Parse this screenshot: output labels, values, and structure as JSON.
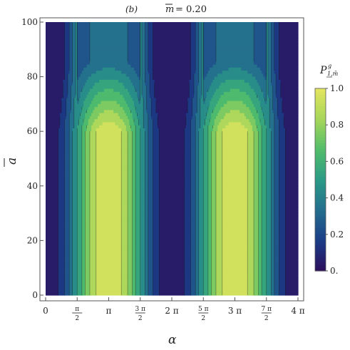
{
  "chart_data": {
    "type": "heatmap",
    "panel_label": "(b)",
    "title": "m̄ = 0.20",
    "title_var": "m",
    "title_value": "= 0.20",
    "xlabel": "α",
    "ylabel": "a",
    "legend_title": "P",
    "legend_title_sub": "1,m̄",
    "legend_title_sup": "g",
    "xlim": [
      0,
      12.566
    ],
    "ylim": [
      0,
      100
    ],
    "x_ticks": [
      {
        "value": 0,
        "label": "0",
        "numerator": "",
        "denominator": ""
      },
      {
        "value": 1.5708,
        "label": "",
        "numerator": "π",
        "denominator": "2"
      },
      {
        "value": 3.1416,
        "label": "π",
        "numerator": "",
        "denominator": ""
      },
      {
        "value": 4.7124,
        "label": "",
        "numerator": "3 π",
        "denominator": "2"
      },
      {
        "value": 6.2832,
        "label": "2 π",
        "numerator": "",
        "denominator": ""
      },
      {
        "value": 7.854,
        "label": "",
        "numerator": "5 π",
        "denominator": "2"
      },
      {
        "value": 9.4248,
        "label": "3 π",
        "numerator": "",
        "denominator": ""
      },
      {
        "value": 10.9956,
        "label": "",
        "numerator": "7 π",
        "denominator": "2"
      },
      {
        "value": 12.566,
        "label": "4 π",
        "numerator": "",
        "denominator": ""
      }
    ],
    "y_ticks": [
      {
        "value": 0,
        "label": "0"
      },
      {
        "value": 20,
        "label": "20"
      },
      {
        "value": 40,
        "label": "40"
      },
      {
        "value": 60,
        "label": "60"
      },
      {
        "value": 80,
        "label": "80"
      },
      {
        "value": 100,
        "label": "100"
      }
    ],
    "colorbar_ticks": [
      {
        "value": 1.0,
        "label": "1.0"
      },
      {
        "value": 0.8,
        "label": "0.8"
      },
      {
        "value": 0.6,
        "label": "0.6"
      },
      {
        "value": 0.4,
        "label": "0.4"
      },
      {
        "value": 0.2,
        "label": "0.2"
      },
      {
        "value": 0.0,
        "label": "0."
      }
    ],
    "colorbar_range": [
      0,
      1
    ],
    "colormap": [
      "#2d0e5c",
      "#1b3d86",
      "#236d8e",
      "#2a9a86",
      "#52bd6a",
      "#a7d65a",
      "#e3e55f"
    ],
    "contour_levels": [
      0.1,
      0.2,
      0.3,
      0.4,
      0.5,
      0.6,
      0.7,
      0.8,
      0.9
    ]
  }
}
